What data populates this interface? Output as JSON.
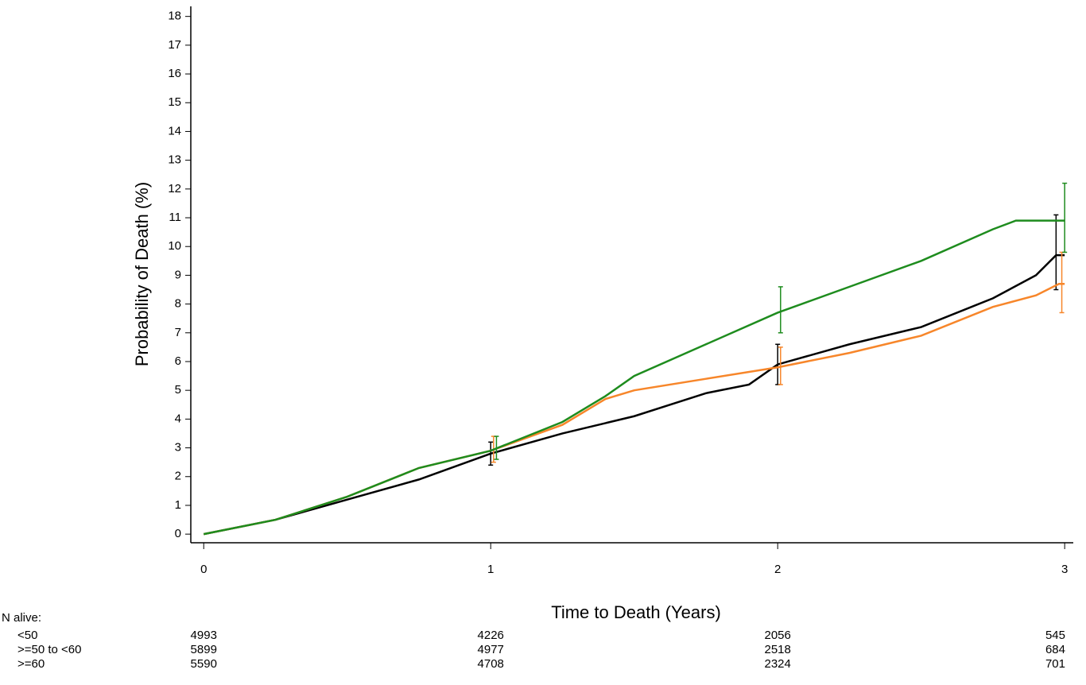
{
  "chart_data": {
    "type": "line",
    "x_label": "Time to Death (Years)",
    "y_label": "Probability of Death (%)",
    "xlim": [
      -0.045,
      3.03
    ],
    "ylim": [
      -0.3,
      18.35
    ],
    "xticks": [
      0,
      1,
      2,
      3
    ],
    "yticks": [
      0,
      1,
      2,
      3,
      4,
      5,
      6,
      7,
      8,
      9,
      10,
      11,
      12,
      13,
      14,
      15,
      16,
      17,
      18
    ],
    "risk_title": "N alive:",
    "risk_x": [
      0,
      1,
      2,
      3
    ],
    "series": [
      {
        "name": "<50",
        "color": "#000000",
        "x": [
          0,
          0.25,
          0.5,
          0.75,
          1,
          1.25,
          1.5,
          1.75,
          1.9,
          2,
          2.25,
          2.5,
          2.75,
          2.9,
          2.97,
          3
        ],
        "values": [
          0,
          0.5,
          1.2,
          1.9,
          2.8,
          3.5,
          4.1,
          4.9,
          5.2,
          5.9,
          6.6,
          7.2,
          8.2,
          9.0,
          9.7,
          9.7
        ],
        "ci_x": [
          1,
          2,
          2.97
        ],
        "ci_lower": [
          2.4,
          5.2,
          8.5
        ],
        "ci_upper": [
          3.2,
          6.6,
          11.1
        ],
        "n_alive": [
          4993,
          4226,
          2056,
          545
        ]
      },
      {
        "name": ">=50 to <60",
        "color": "#f7862a",
        "x": [
          0,
          0.25,
          0.5,
          0.75,
          1,
          1.25,
          1.4,
          1.5,
          1.75,
          2,
          2.25,
          2.5,
          2.75,
          2.9,
          2.98,
          3
        ],
        "values": [
          0,
          0.5,
          1.3,
          2.3,
          2.9,
          3.8,
          4.7,
          5.0,
          5.4,
          5.8,
          6.3,
          6.9,
          7.9,
          8.3,
          8.7,
          8.7
        ],
        "ci_x": [
          1.01,
          2.01,
          2.99
        ],
        "ci_lower": [
          2.5,
          5.2,
          7.7
        ],
        "ci_upper": [
          3.4,
          6.5,
          9.8
        ],
        "n_alive": [
          5899,
          4977,
          2518,
          684
        ]
      },
      {
        "name": ">=60",
        "color": "#1e8c1e",
        "x": [
          0,
          0.25,
          0.5,
          0.75,
          1,
          1.25,
          1.4,
          1.5,
          1.75,
          2,
          2.25,
          2.5,
          2.75,
          2.83,
          3
        ],
        "values": [
          0,
          0.5,
          1.3,
          2.3,
          2.9,
          3.9,
          4.8,
          5.5,
          6.6,
          7.7,
          8.6,
          9.5,
          10.6,
          10.9,
          10.9
        ],
        "ci_x": [
          1.02,
          2.01,
          3.0
        ],
        "ci_lower": [
          2.6,
          7.0,
          9.8
        ],
        "ci_upper": [
          3.4,
          8.6,
          12.2
        ],
        "n_alive": [
          5590,
          4708,
          2324,
          701
        ]
      }
    ]
  }
}
